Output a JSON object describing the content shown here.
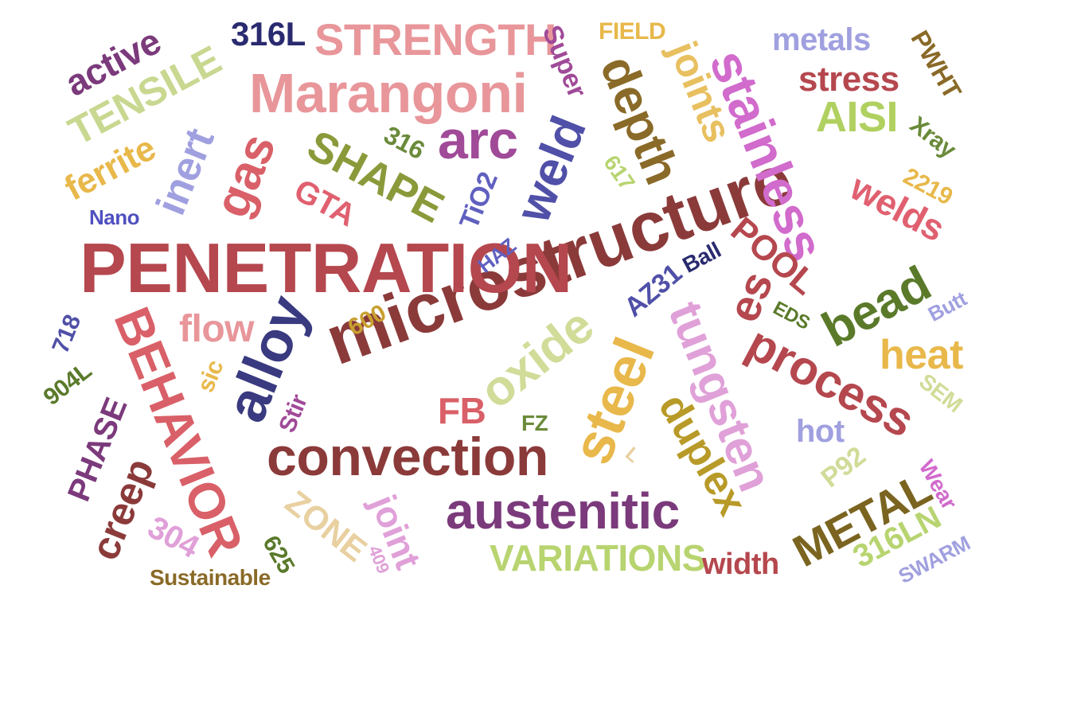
{
  "words": [
    {
      "text": "microstructure",
      "color": "#8b3a3a"
    },
    {
      "text": "PENETRATION",
      "color": "#b5474e"
    },
    {
      "text": "Marangoni",
      "color": "#e8969a"
    },
    {
      "text": "convection",
      "color": "#8b3a3a"
    },
    {
      "text": "stainless",
      "color": "#d16bcc"
    },
    {
      "text": "austenitic",
      "color": "#7b3a7b"
    },
    {
      "text": "STRENGTH",
      "color": "#e8969a"
    },
    {
      "text": "BEHAVIOR",
      "color": "#d96068"
    },
    {
      "text": "tungsten",
      "color": "#e0a0d8"
    },
    {
      "text": "process",
      "color": "#b5474e"
    },
    {
      "text": "oxide",
      "color": "#d0dc98"
    },
    {
      "text": "steel",
      "color": "#e8b84a"
    },
    {
      "text": "alloy",
      "color": "#3a3a80"
    },
    {
      "text": "weld",
      "color": "#5050a8"
    },
    {
      "text": "gas",
      "color": "#d96068"
    },
    {
      "text": "arc",
      "color": "#a04a98"
    },
    {
      "text": "SHAPE",
      "color": "#8a9a3a"
    },
    {
      "text": "TENSILE",
      "color": "#c8d890"
    },
    {
      "text": "depth",
      "color": "#8a6a28"
    },
    {
      "text": "bead",
      "color": "#5a7a2a"
    },
    {
      "text": "heat",
      "color": "#e8b84a"
    },
    {
      "text": "duplex",
      "color": "#b89a28"
    },
    {
      "text": "METAL",
      "color": "#7a6420"
    },
    {
      "text": "VARIATIONS",
      "color": "#b8d470"
    },
    {
      "text": "inert",
      "color": "#a0a0e0"
    },
    {
      "text": "joints",
      "color": "#e8c060"
    },
    {
      "text": "AISI",
      "color": "#b0d060"
    },
    {
      "text": "stress",
      "color": "#b5474e"
    },
    {
      "text": "welds",
      "color": "#e06070"
    },
    {
      "text": "POOL",
      "color": "#b5474e"
    },
    {
      "text": "active",
      "color": "#7b3a7b"
    },
    {
      "text": "ferrite",
      "color": "#e8b84a"
    },
    {
      "text": "flow",
      "color": "#e8969a"
    },
    {
      "text": "creep",
      "color": "#8b3a3a"
    },
    {
      "text": "joint",
      "color": "#e0a0d8"
    },
    {
      "text": "ZONE",
      "color": "#e8d0a0"
    },
    {
      "text": "PHASE",
      "color": "#7b3a7b"
    },
    {
      "text": "metals",
      "color": "#a0a0e0"
    },
    {
      "text": "316L",
      "color": "#2a2a70"
    },
    {
      "text": "Super",
      "color": "#a04a98"
    },
    {
      "text": "FIELD",
      "color": "#e8b84a"
    },
    {
      "text": "PWHT",
      "color": "#8a6a28"
    },
    {
      "text": "Xray",
      "color": "#6a8a3a"
    },
    {
      "text": "2219",
      "color": "#e8b84a"
    },
    {
      "text": "617",
      "color": "#b8d470"
    },
    {
      "text": "316",
      "color": "#6a8a3a"
    },
    {
      "text": "GTA",
      "color": "#e06070"
    },
    {
      "text": "TiO2",
      "color": "#6060c0"
    },
    {
      "text": "HAZ",
      "color": "#6060c0"
    },
    {
      "text": "Nano",
      "color": "#5050c0"
    },
    {
      "text": "AZ31",
      "color": "#5050a8"
    },
    {
      "text": "Ball",
      "color": "#2a2a70"
    },
    {
      "text": "EDS",
      "color": "#5a7a2a"
    },
    {
      "text": "Butt",
      "color": "#a0a0e0"
    },
    {
      "text": "SEM",
      "color": "#d0dc98"
    },
    {
      "text": "hot",
      "color": "#a0a0e0"
    },
    {
      "text": "P92",
      "color": "#d0dc98"
    },
    {
      "text": "Wear",
      "color": "#d16bcc"
    },
    {
      "text": "316LN",
      "color": "#b8d470"
    },
    {
      "text": "SWARM",
      "color": "#a0a0e0"
    },
    {
      "text": "width",
      "color": "#b5474e"
    },
    {
      "text": "FB",
      "color": "#d96068"
    },
    {
      "text": "FZ",
      "color": "#6a8a3a"
    },
    {
      "text": "600",
      "color": "#c8a030"
    },
    {
      "text": "sic",
      "color": "#e8b84a"
    },
    {
      "text": "Stir",
      "color": "#a04a98"
    },
    {
      "text": "718",
      "color": "#5050a8"
    },
    {
      "text": "904L",
      "color": "#5a7a2a"
    },
    {
      "text": "304",
      "color": "#e0a0d8"
    },
    {
      "text": "625",
      "color": "#5a7a2a"
    },
    {
      "text": "409",
      "color": "#e0a0d8"
    },
    {
      "text": "Sustainable",
      "color": "#8a6a28"
    },
    {
      "text": "es",
      "color": "#b5474e"
    },
    {
      "text": "L",
      "color": "#e8d0a0"
    }
  ]
}
